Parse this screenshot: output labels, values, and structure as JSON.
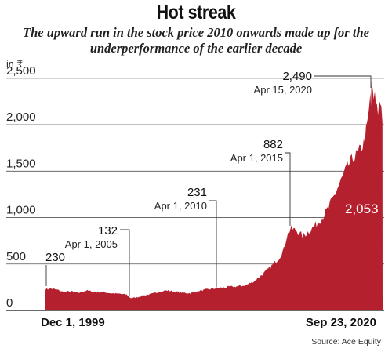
{
  "chart_data": {
    "type": "area",
    "title": "Hot streak",
    "subtitle": "The upward run in the stock price 2010 onwards made up for the underperformance of the earlier decade",
    "ylabel": "in ₹",
    "xlabel": "",
    "source": "Source: Ace Equity",
    "ylim": [
      0,
      2600
    ],
    "yticks": [
      0,
      500,
      1000,
      1500,
      2000,
      2500
    ],
    "ytick_labels": [
      "0",
      "500",
      "1,000",
      "1,500",
      "2,000",
      "2,500"
    ],
    "x_labels": [
      "Dec 1, 1999",
      "Sep 23, 2020"
    ],
    "grid": true,
    "colors": {
      "area": "#b5202e",
      "annotation_line": "#333333",
      "grid": "#555555"
    },
    "series": [
      {
        "x": [
          1999.92,
          2000.3,
          2000.7,
          2001.0,
          2001.5,
          2002.0,
          2002.5,
          2003.0,
          2003.5,
          2004.0,
          2004.5,
          2005.0,
          2005.25,
          2005.6,
          2006.0,
          2006.5,
          2007.0,
          2007.5,
          2008.0,
          2008.5,
          2009.0,
          2009.5,
          2010.0,
          2010.25,
          2010.6,
          2011.0,
          2011.5,
          2012.0,
          2012.5,
          2013.0,
          2013.5,
          2014.0,
          2014.5,
          2014.8,
          2015.0,
          2015.25,
          2015.6,
          2016.0,
          2016.5,
          2016.9,
          2017.2,
          2017.6,
          2018.0,
          2018.4,
          2018.8,
          2019.2,
          2019.5,
          2019.8,
          2020.0,
          2020.15,
          2020.29,
          2020.4,
          2020.55,
          2020.7,
          2020.8,
          2020.9,
          2020.99
        ],
        "values": [
          230,
          235,
          220,
          200,
          205,
          190,
          215,
          195,
          200,
          185,
          180,
          170,
          132,
          140,
          160,
          175,
          200,
          215,
          205,
          190,
          185,
          210,
          225,
          231,
          240,
          245,
          255,
          260,
          275,
          320,
          390,
          470,
          560,
          650,
          800,
          882,
          860,
          800,
          870,
          940,
          1000,
          1100,
          1250,
          1400,
          1550,
          1650,
          1700,
          1800,
          1950,
          2150,
          2490,
          2250,
          2300,
          2100,
          2350,
          2200,
          2053
        ]
      }
    ],
    "annotations": [
      {
        "value": "230",
        "date": ""
      },
      {
        "value": "132",
        "date": "Apr 1, 2005"
      },
      {
        "value": "231",
        "date": "Apr 1, 2010"
      },
      {
        "value": "882",
        "date": "Apr 1, 2015"
      },
      {
        "value": "2,490",
        "date": "Apr 15, 2020"
      },
      {
        "value": "2,053",
        "date": ""
      }
    ]
  }
}
